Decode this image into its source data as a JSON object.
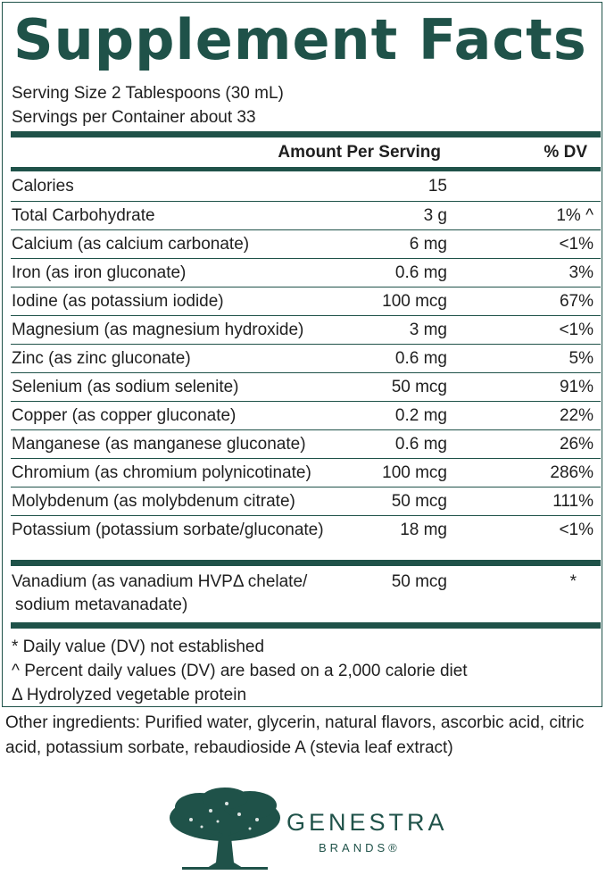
{
  "title": "Supplement Facts",
  "serving_size": "Serving Size 2 Tablespoons (30 mL)",
  "servings_per_container": "Servings per Container about 33",
  "headers": {
    "amount": "Amount Per Serving",
    "dv": "% DV"
  },
  "rows": [
    {
      "name": "Calories",
      "amount": "15",
      "dv": ""
    },
    {
      "name": "Total Carbohydrate",
      "amount": "3 g",
      "dv": "1% ^"
    },
    {
      "name": "Calcium (as calcium carbonate)",
      "amount": "6 mg",
      "dv": "<1%"
    },
    {
      "name": "Iron (as iron gluconate)",
      "amount": "0.6 mg",
      "dv": "3%"
    },
    {
      "name": "Iodine (as potassium iodide)",
      "amount": "100 mcg",
      "dv": "67%"
    },
    {
      "name": "Magnesium (as magnesium hydroxide)",
      "amount": "3 mg",
      "dv": "<1%"
    },
    {
      "name": "Zinc (as zinc gluconate)",
      "amount": "0.6 mg",
      "dv": "5%"
    },
    {
      "name": "Selenium (as sodium selenite)",
      "amount": "50 mcg",
      "dv": "91%"
    },
    {
      "name": "Copper (as copper gluconate)",
      "amount": "0.2 mg",
      "dv": "22%"
    },
    {
      "name": "Manganese (as manganese gluconate)",
      "amount": "0.6 mg",
      "dv": "26%"
    },
    {
      "name": "Chromium (as chromium polynicotinate)",
      "amount": "100 mcg",
      "dv": "286%"
    },
    {
      "name": "Molybdenum (as molybdenum citrate)",
      "amount": "50 mcg",
      "dv": "111%"
    },
    {
      "name": "Potassium (potassium sorbate/gluconate)",
      "amount": "18 mg",
      "dv": "<1%"
    }
  ],
  "vanadium": {
    "line1": "Vanadium (as vanadium HVPΔ chelate/",
    "line2": "sodium metavanadate)",
    "amount": "50 mcg",
    "dv": "*"
  },
  "footnotes": [
    "* Daily value (DV) not established",
    "^ Percent daily values (DV) are based on a 2,000 calorie diet",
    "Δ Hydrolyzed vegetable protein"
  ],
  "other_ingredients": "Other ingredients: Purified water, glycerin, natural flavors, ascorbic acid, citric acid, potassium sorbate, rebaudioside A (stevia leaf extract)",
  "brand": {
    "name": "GENESTRA",
    "sub": "BRANDS®",
    "icon": "oak-tree-icon",
    "color": "#1f5249"
  }
}
